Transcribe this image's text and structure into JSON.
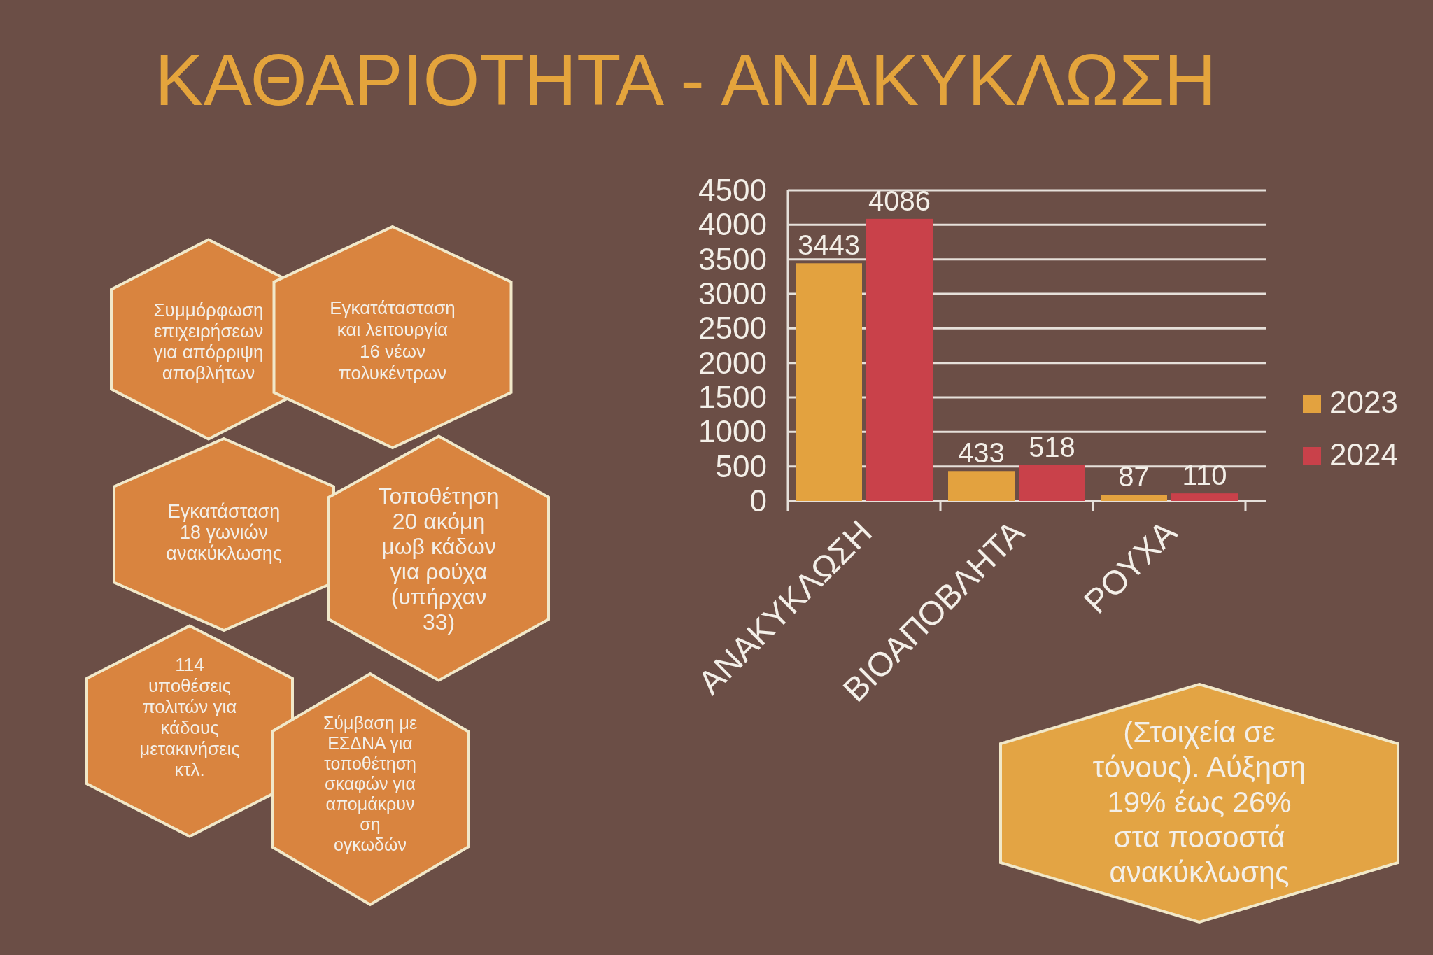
{
  "chart_data": {
    "type": "bar",
    "title": "ΚΑΘΑΡΙΟΤΗΤΑ - ΑΝΑΚΥΚΛΩΣΗ",
    "categories": [
      "ΑΝΑΚΥΚΛΩΣΗ",
      "ΒΙΟΑΠΟΒΛΗΤΑ",
      "ΡΟΥΧΑ"
    ],
    "series": [
      {
        "name": "2023",
        "color": "#e3a23f",
        "values": [
          3443,
          433,
          87
        ]
      },
      {
        "name": "2024",
        "color": "#c9414a",
        "values": [
          4086,
          518,
          110
        ]
      }
    ],
    "ylim": [
      0,
      4500
    ],
    "yticks": [
      0,
      500,
      1000,
      1500,
      2000,
      2500,
      3000,
      3500,
      4000,
      4500
    ],
    "grid": "y",
    "legend": "right",
    "data_labels": true,
    "annotations": [
      "Συμμόρφωση\nεπιχειρήσεων\nγια απόρριψη\nαποβλήτων",
      "Εγκατάτασταση\nκαι λειτουργία\n16 νέων\nπολυκέντρων",
      "Εγκατάσταση\n18 γωνιών\nανακύκλωσης",
      "Τοποθέτηση\n20 ακόμη\nμωβ κάδων\nγια ρούχα\n(υπήρχαν\n33)",
      "114\nυποθέσεις\nπολιτών για\nκάδους\nμετακινήσεις\nκτλ.",
      "Σύμβαση με\nΕΣΔΝΑ για\nτοποθέτηση\nσκαφών για\nαπομάκρυν\nση\nογκωδών",
      "(Στοιχεία σε\nτόνους). Αύξηση\n19% έως 26%\nστα ποσοστά\nανακύκλωσης"
    ]
  }
}
